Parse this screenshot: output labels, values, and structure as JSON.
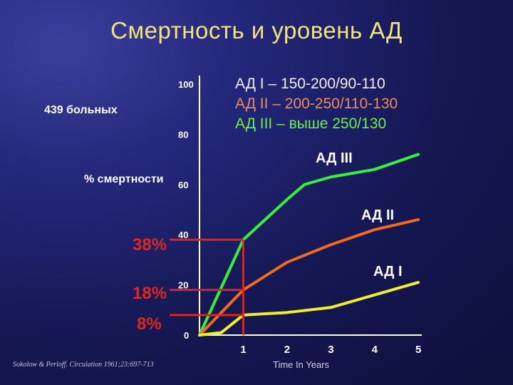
{
  "title": "Смертность и уровень АД",
  "patients_label": "439 больных",
  "ylabel": "% смертности",
  "highlights": [
    {
      "label": "38%",
      "value": 38
    },
    {
      "label": "18%",
      "value": 18
    },
    {
      "label": "8%",
      "value": 8
    }
  ],
  "legend": [
    {
      "text": "АД I – 150-200/90-110",
      "color": "#f0f0f0"
    },
    {
      "text": "АД II – 200-250/110-130",
      "color": "#f08a5a"
    },
    {
      "text": "АД III – выше 250/130",
      "color": "#6ef04a"
    }
  ],
  "source": "Sokolow & Perloff. Circulation 1961;23:697-713",
  "chart_data": {
    "type": "line",
    "xlabel": "Time In Years",
    "ylabel": "% смертности",
    "x_ticks": [
      1,
      2,
      3,
      4,
      5
    ],
    "y_ticks": [
      0,
      20,
      40,
      60,
      80,
      100
    ],
    "xlim": [
      0,
      5
    ],
    "ylim": [
      0,
      100
    ],
    "grid": false,
    "series": [
      {
        "name": "АД III",
        "color": "#3cee3c",
        "x": [
          0,
          1,
          2,
          2.4,
          3,
          4,
          5
        ],
        "y": [
          0,
          38,
          54,
          60,
          63,
          66,
          72
        ]
      },
      {
        "name": "АД II",
        "color": "#f26a1b",
        "x": [
          0,
          0.5,
          1,
          2,
          3,
          4,
          5
        ],
        "y": [
          0,
          9,
          18,
          29,
          36,
          42,
          46
        ]
      },
      {
        "name": "АД I",
        "color": "#f2ef2a",
        "x": [
          0,
          0.5,
          1,
          2,
          3,
          4,
          5
        ],
        "y": [
          0,
          1,
          8,
          9,
          11,
          16,
          21
        ]
      }
    ]
  }
}
